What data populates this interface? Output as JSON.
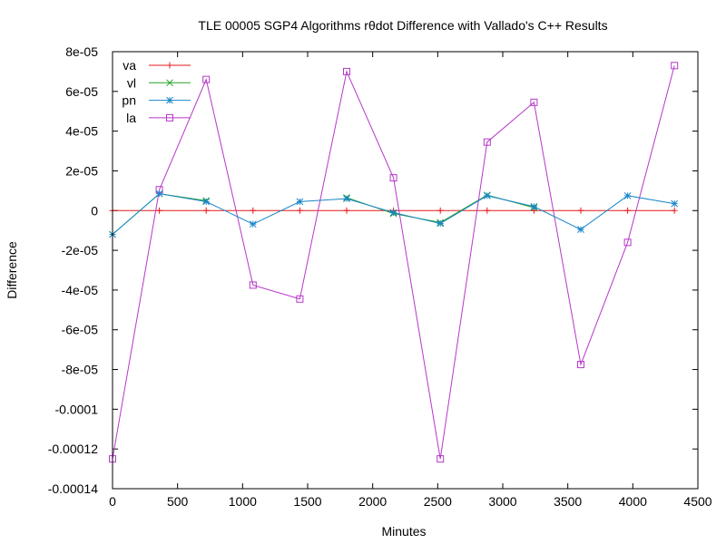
{
  "chart_data": {
    "type": "line",
    "title": "TLE 00005 SGP4 Algorithms rθdot Difference  with Vallado's C++ Results",
    "xlabel": "Minutes",
    "ylabel": "Difference",
    "xlim": [
      0,
      4500
    ],
    "ylim": [
      -0.00014,
      8e-05
    ],
    "grid": false,
    "legend_position": "top-left",
    "x_ticks": [
      {
        "value": 0,
        "label": "0"
      },
      {
        "value": 500,
        "label": "500"
      },
      {
        "value": 1000,
        "label": "1000"
      },
      {
        "value": 1500,
        "label": "1500"
      },
      {
        "value": 2000,
        "label": "2000"
      },
      {
        "value": 2500,
        "label": "2500"
      },
      {
        "value": 3000,
        "label": "3000"
      },
      {
        "value": 3500,
        "label": "3500"
      },
      {
        "value": 4000,
        "label": "4000"
      },
      {
        "value": 4500,
        "label": "4500"
      }
    ],
    "y_ticks": [
      {
        "value": 8e-05,
        "label": "8e-05"
      },
      {
        "value": 6e-05,
        "label": "6e-05"
      },
      {
        "value": 4e-05,
        "label": "4e-05"
      },
      {
        "value": 2e-05,
        "label": "2e-05"
      },
      {
        "value": 0,
        "label": "0"
      },
      {
        "value": -2e-05,
        "label": "-2e-05"
      },
      {
        "value": -4e-05,
        "label": "-4e-05"
      },
      {
        "value": -6e-05,
        "label": "-6e-05"
      },
      {
        "value": -8e-05,
        "label": "-8e-05"
      },
      {
        "value": -0.0001,
        "label": "-0.0001"
      },
      {
        "value": -0.00012,
        "label": "-0.00012"
      },
      {
        "value": -0.00014,
        "label": "-0.00014"
      }
    ],
    "x": [
      0,
      360,
      720,
      1080,
      1440,
      1800,
      2160,
      2520,
      2880,
      3240,
      3600,
      3960,
      4320
    ],
    "series": [
      {
        "name": "va",
        "color": "#e41a1c",
        "marker": "plus",
        "values": [
          0,
          0,
          0,
          0,
          0,
          0,
          0,
          0,
          0,
          0,
          0,
          0,
          0
        ]
      },
      {
        "name": "vl",
        "color": "#22a022",
        "marker": "cross",
        "values": [
          -1.2e-05,
          8.5e-06,
          5e-06,
          null,
          null,
          6.5e-06,
          -1.5e-06,
          -6e-06,
          7.8e-06,
          1.5e-06,
          null,
          null,
          null
        ]
      },
      {
        "name": "pn",
        "color": "#1a86c8",
        "marker": "star",
        "values": [
          -1.2e-05,
          8.5e-06,
          4.5e-06,
          -6.8e-06,
          4.5e-06,
          6e-06,
          -1e-06,
          -6.5e-06,
          7.5e-06,
          2e-06,
          -9.5e-06,
          7.5e-06,
          3.5e-06
        ]
      },
      {
        "name": "la",
        "color": "#b638c8",
        "marker": "square",
        "values": [
          -0.000125,
          1.05e-05,
          6.6e-05,
          -3.75e-05,
          -4.45e-05,
          7e-05,
          1.65e-05,
          -0.000125,
          3.45e-05,
          5.45e-05,
          -7.75e-05,
          -1.6e-05,
          7.3e-05
        ]
      }
    ]
  }
}
